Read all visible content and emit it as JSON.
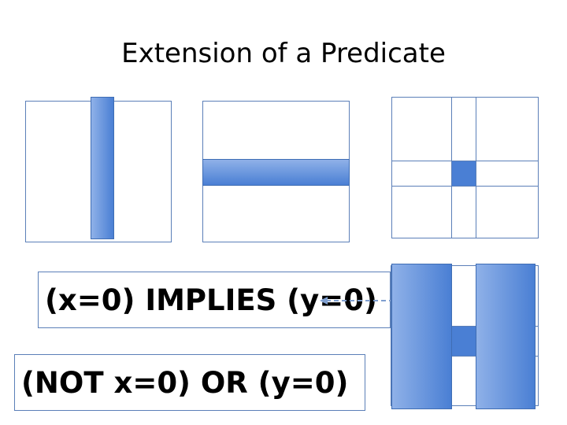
{
  "slide": {
    "title": "Extension of a Predicate",
    "statement_implies": "(x=0) IMPLIES (y=0)",
    "statement_or": "(NOT x=0) OR (y=0)"
  },
  "colors": {
    "region_fill": "#4a7fd4",
    "outline": "#5b7fb8"
  }
}
